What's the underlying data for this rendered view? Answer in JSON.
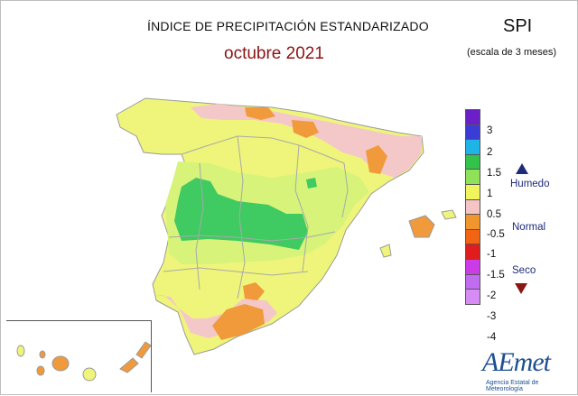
{
  "header": {
    "title": "ÍNDICE DE PRECIPITACIÓN ESTANDARIZADO",
    "period": "octubre 2021",
    "index": "SPI",
    "scale": "(escala de 3 meses)"
  },
  "legend": {
    "ticks": [
      "3",
      "2",
      "1.5",
      "1",
      "0.5",
      "-0.5",
      "-1",
      "-1.5",
      "-2",
      "-3",
      "-4"
    ],
    "colors": [
      "#6a1fc7",
      "#3b3bd6",
      "#1fb4e6",
      "#33c24a",
      "#8fe15a",
      "#eff55a",
      "#f5c4c4",
      "#f0962d",
      "#f06414",
      "#e11c1c",
      "#cc3ce6"
    ],
    "categories": {
      "wet": "Humedo",
      "normal": "Normal",
      "dry": "Seco"
    }
  },
  "logo": {
    "name": "AEmet",
    "subtitle": "Agencia Estatal de Meteorología"
  },
  "map_colors": {
    "normal": "#eff57a",
    "slightly_wet": "#d7f37a",
    "wet": "#3fca62",
    "slightly_dry": "#f4c8c8",
    "dry": "#f09a3c",
    "border": "#a9a9a9"
  }
}
